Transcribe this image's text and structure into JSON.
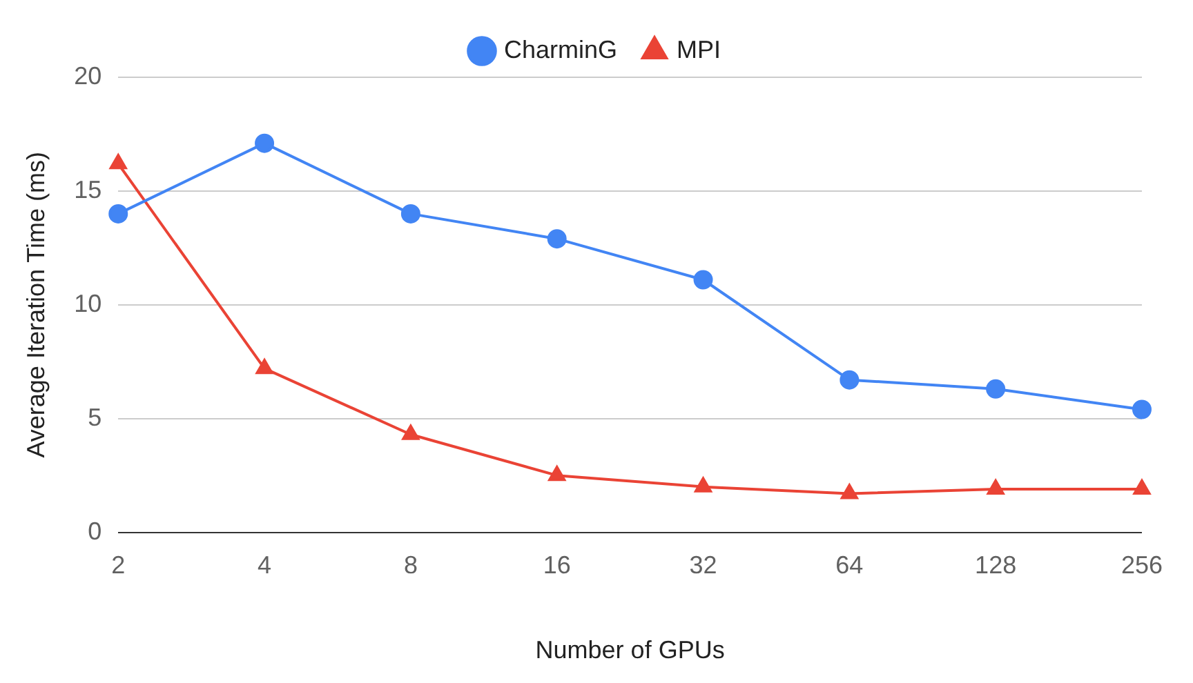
{
  "chart_data": {
    "type": "line",
    "xlabel": "Number of GPUs",
    "ylabel": "Average Iteration Time (ms)",
    "categories": [
      "2",
      "4",
      "8",
      "16",
      "32",
      "64",
      "128",
      "256"
    ],
    "series": [
      {
        "name": "CharminG",
        "color": "#4285f4",
        "marker": "circle",
        "values": [
          14,
          17.1,
          14,
          12.9,
          11.1,
          6.7,
          6.3,
          5.4
        ]
      },
      {
        "name": "MPI",
        "color": "#ea4335",
        "marker": "triangle",
        "values": [
          16.2,
          7.2,
          4.3,
          2.5,
          2.0,
          1.7,
          1.9,
          1.9
        ]
      }
    ],
    "ylim": [
      0,
      20
    ],
    "yticks": [
      0,
      5,
      10,
      15,
      20
    ],
    "grid": "y",
    "legend": "top",
    "line_style": "solid"
  }
}
